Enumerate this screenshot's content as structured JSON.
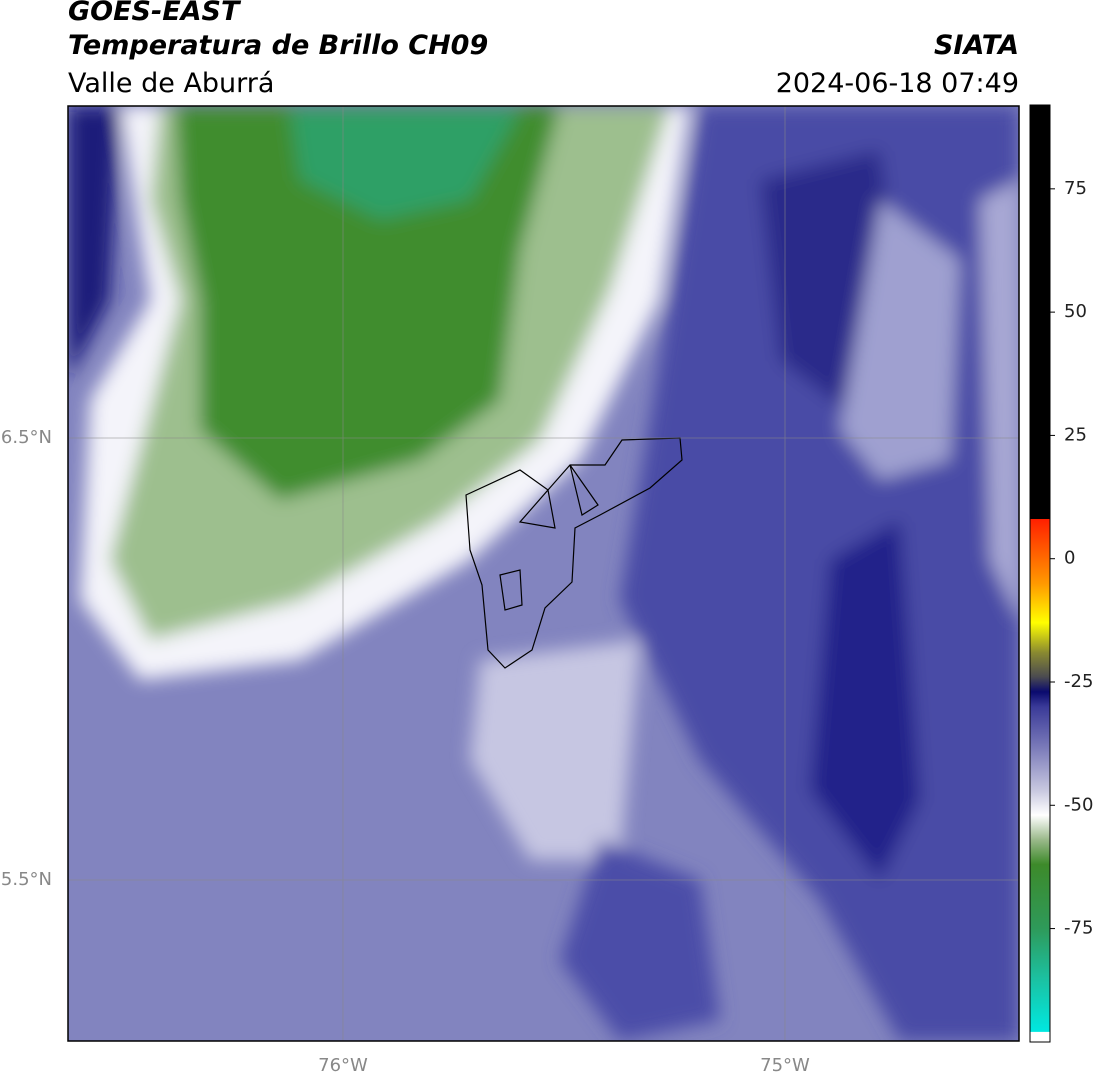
{
  "header": {
    "title": "GOES-EAST",
    "subtitle": "Temperatura de Brillo CH09",
    "region": "Valle de Aburrá",
    "source": "SIATA",
    "datetime": "2024-06-18 07:49"
  },
  "map": {
    "lon_labels": [
      "76°W",
      "75°W"
    ],
    "lat_labels": [
      "6.5°N",
      "5.5°N"
    ]
  },
  "colorbar": {
    "lim": [
      -98,
      92
    ],
    "ticks": [
      75,
      50,
      25,
      0,
      -25,
      -50,
      -75
    ],
    "stops": [
      {
        "value": -98,
        "color": "#ffffff"
      },
      {
        "value": -96,
        "color": "#ffffff"
      },
      {
        "value": -95.9,
        "color": "#00e8e0"
      },
      {
        "value": -85,
        "color": "#1cc0a0"
      },
      {
        "value": -75,
        "color": "#2e9a5a"
      },
      {
        "value": -62,
        "color": "#3d8a2a"
      },
      {
        "value": -57,
        "color": "#9ab98a"
      },
      {
        "value": -52,
        "color": "#ffffff"
      },
      {
        "value": -47,
        "color": "#c8c8e0"
      },
      {
        "value": -38,
        "color": "#7878b8"
      },
      {
        "value": -30,
        "color": "#3a3a98"
      },
      {
        "value": -27,
        "color": "#0a0a6e"
      },
      {
        "value": -24,
        "color": "#4a4a50"
      },
      {
        "value": -19,
        "color": "#8a8a30"
      },
      {
        "value": -13,
        "color": "#ffff00"
      },
      {
        "value": -5,
        "color": "#ff9900"
      },
      {
        "value": 8,
        "color": "#ff2000"
      },
      {
        "value": 8.1,
        "color": "#000000"
      },
      {
        "value": 92,
        "color": "#000000"
      }
    ]
  }
}
